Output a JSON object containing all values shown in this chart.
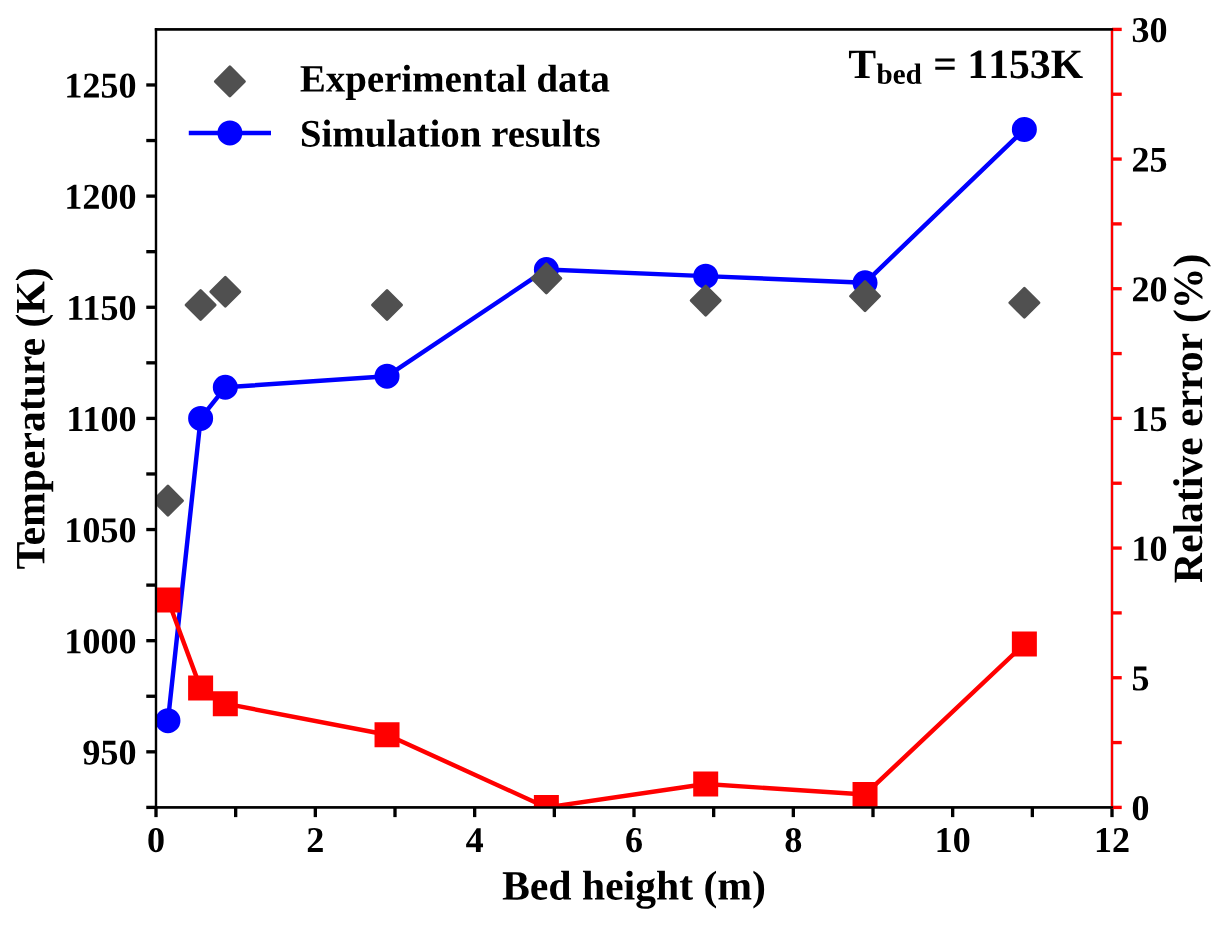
{
  "chart_data": {
    "type": "line",
    "xlabel": "Bed height (m)",
    "ylabel": "Temperature (K)",
    "y2label": "Relative error (%)",
    "annotations": [
      "T$_{bed}$ = 1153K"
    ],
    "x": [
      0.15,
      0.56,
      0.87,
      2.9,
      4.9,
      6.9,
      8.9,
      10.9
    ],
    "series": [
      {
        "name": "Experimental data",
        "type": "scatter",
        "marker": "diamond",
        "color": "#505050",
        "values": [
          1063,
          1151,
          1157,
          1151,
          1163,
          1153,
          1155,
          1152
        ]
      },
      {
        "name": "Simulation results",
        "type": "line",
        "marker": "circle",
        "color": "#0000ff",
        "values": [
          964,
          1100,
          1114,
          1119,
          1167,
          1164,
          1161,
          1230
        ]
      },
      {
        "marker": "square",
        "color": "#ff0000",
        "axis": "y2",
        "values": [
          8.0,
          4.6,
          4.0,
          2.8,
          0.0,
          0.9,
          0.5,
          6.3
        ]
      }
    ],
    "xlim": [
      0,
      12
    ],
    "xticks": [
      0,
      {
        "value": 1,
        "label": null
      },
      2,
      {
        "value": 3,
        "label": null
      },
      4,
      {
        "value": 5,
        "label": null
      },
      6,
      {
        "value": 7,
        "label": null
      },
      8,
      {
        "value": 9,
        "label": null
      },
      10,
      {
        "value": 11,
        "label": null
      },
      12
    ],
    "ylim": [
      925,
      1275
    ],
    "yticks": [
      {
        "value": 925,
        "label": null
      },
      950,
      {
        "value": 975,
        "label": null
      },
      1000,
      {
        "value": 1025,
        "label": null
      },
      1050,
      {
        "value": 1075,
        "label": null
      },
      1100,
      {
        "value": 1125,
        "label": null
      },
      1150,
      {
        "value": 1175,
        "label": null
      },
      1200,
      {
        "value": 1225,
        "label": null
      },
      1250
    ],
    "y2lim": [
      0,
      30
    ],
    "y2ticks": [
      0,
      {
        "value": 2.5,
        "label": null
      },
      5,
      {
        "value": 7.5,
        "label": null
      },
      10,
      {
        "value": 12.5,
        "label": null
      },
      15,
      {
        "value": 17.5,
        "label": null
      },
      20,
      {
        "value": 22.5,
        "label": null
      },
      25,
      {
        "value": 27.5,
        "label": null
      },
      30
    ],
    "grid": false,
    "legend": "top left",
    "line_style": "solid"
  }
}
